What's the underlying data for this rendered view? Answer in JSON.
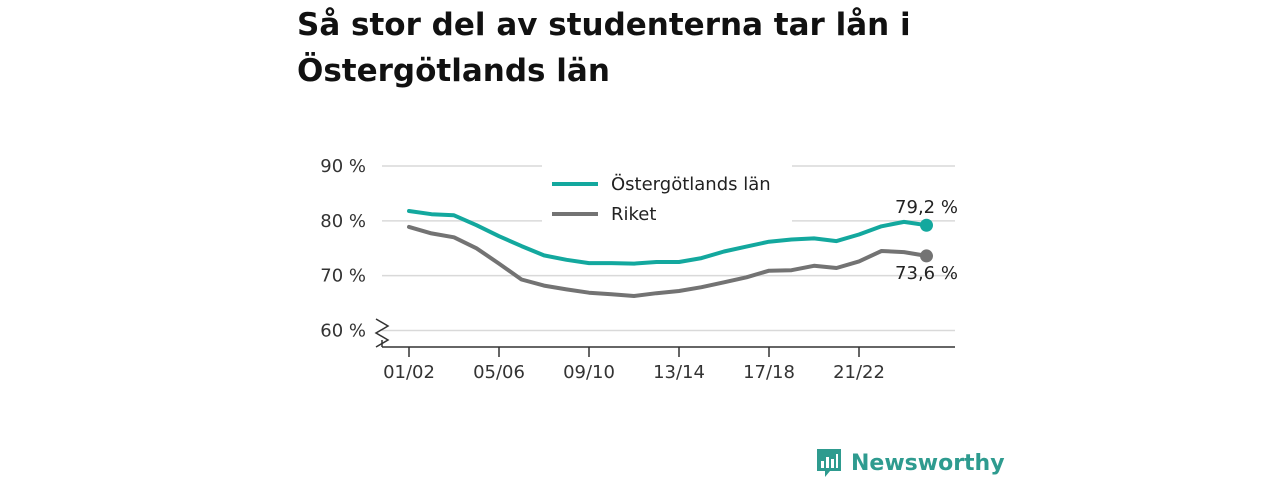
{
  "title": "Så stor del av studenterna tar lån i Östergötlands län",
  "brand": {
    "name": "Newsworthy",
    "icon": "newsworthy-logo-icon",
    "color": "#2e9b8f"
  },
  "colors": {
    "teal": "#13a89e",
    "gray": "#737373",
    "grid": "#d9d9d9",
    "axis": "#333333"
  },
  "chart_data": {
    "type": "line",
    "title": "Så stor del av studenterna tar lån i Östergötlands län",
    "x": [
      "01/02",
      "02/03",
      "03/04",
      "04/05",
      "05/06",
      "06/07",
      "07/08",
      "08/09",
      "09/10",
      "10/11",
      "11/12",
      "12/13",
      "13/14",
      "14/15",
      "15/16",
      "16/17",
      "17/18",
      "18/19",
      "19/20",
      "20/21",
      "21/22",
      "22/23",
      "23/24",
      "24/25"
    ],
    "x_tick_labels": [
      "01/02",
      "05/06",
      "09/10",
      "13/14",
      "17/18",
      "21/22"
    ],
    "y_tick_labels": [
      "60 %",
      "70 %",
      "80 %",
      "90 %"
    ],
    "y_ticks": [
      60,
      70,
      80,
      90
    ],
    "ylim": [
      57,
      92
    ],
    "y_axis_break": true,
    "grid": true,
    "legend_position": "top-center",
    "series": [
      {
        "name": "Östergötlands län",
        "color": "#13a89e",
        "values": [
          81.8,
          81.2,
          81.0,
          79.2,
          77.2,
          75.4,
          73.7,
          72.9,
          72.3,
          72.3,
          72.2,
          72.5,
          72.5,
          73.2,
          74.4,
          75.3,
          76.2,
          76.6,
          76.8,
          76.3,
          77.5,
          79.0,
          79.8,
          79.2
        ],
        "end_label": "79,2 %"
      },
      {
        "name": "Riket",
        "color": "#737373",
        "values": [
          78.9,
          77.7,
          77.0,
          75.0,
          72.2,
          69.3,
          68.2,
          67.5,
          66.9,
          66.6,
          66.3,
          66.8,
          67.2,
          67.9,
          68.8,
          69.7,
          70.9,
          71.0,
          71.8,
          71.4,
          72.6,
          74.5,
          74.3,
          73.6
        ],
        "end_label": "73,6 %"
      }
    ]
  }
}
